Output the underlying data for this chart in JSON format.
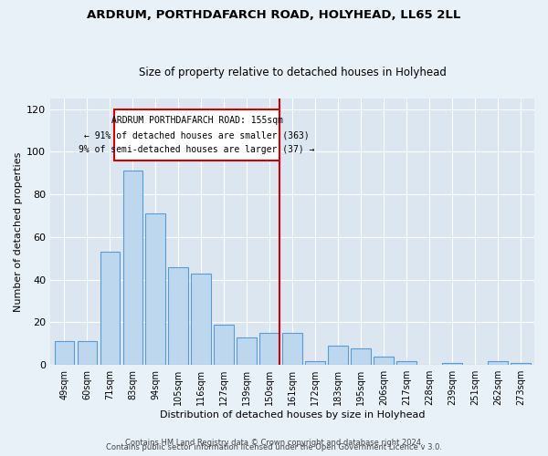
{
  "title": "ARDRUM, PORTHDAFARCH ROAD, HOLYHEAD, LL65 2LL",
  "subtitle": "Size of property relative to detached houses in Holyhead",
  "xlabel": "Distribution of detached houses by size in Holyhead",
  "ylabel": "Number of detached properties",
  "bar_labels": [
    "49sqm",
    "60sqm",
    "71sqm",
    "83sqm",
    "94sqm",
    "105sqm",
    "116sqm",
    "127sqm",
    "139sqm",
    "150sqm",
    "161sqm",
    "172sqm",
    "183sqm",
    "195sqm",
    "206sqm",
    "217sqm",
    "228sqm",
    "239sqm",
    "251sqm",
    "262sqm",
    "273sqm"
  ],
  "bar_values": [
    11,
    11,
    53,
    91,
    71,
    46,
    43,
    19,
    13,
    15,
    15,
    2,
    9,
    8,
    4,
    2,
    0,
    1,
    0,
    2,
    1
  ],
  "bar_color": "#bdd7ee",
  "bar_edge_color": "#5b9bd5",
  "ylim": [
    0,
    125
  ],
  "yticks": [
    0,
    20,
    40,
    60,
    80,
    100,
    120
  ],
  "marker_label_line1": "ARDRUM PORTHDAFARCH ROAD: 155sqm",
  "marker_label_line2": "← 91% of detached houses are smaller (363)",
  "marker_label_line3": "9% of semi-detached houses are larger (37) →",
  "annotation_box_color": "#cc0000",
  "vline_color": "#cc0000",
  "background_color": "#e8f0f8",
  "plot_background": "#dce6f1",
  "footer_line1": "Contains HM Land Registry data © Crown copyright and database right 2024.",
  "footer_line2": "Contains public sector information licensed under the Open Government Licence v 3.0."
}
